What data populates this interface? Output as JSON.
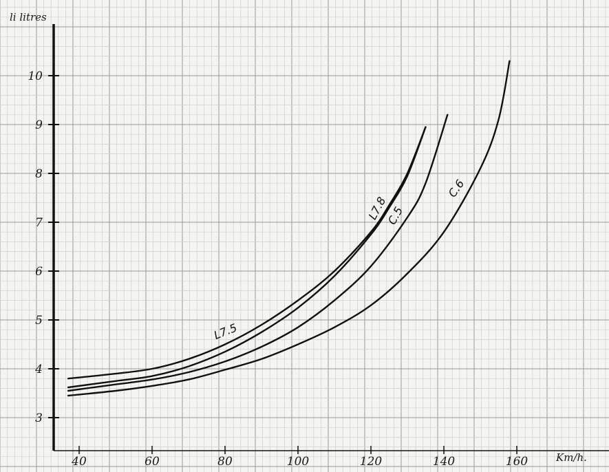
{
  "chart_data": {
    "type": "line",
    "title": "",
    "xlabel": "Km/h.",
    "ylabel": "li litres",
    "xlim": [
      35,
      170
    ],
    "ylim": [
      2.5,
      11
    ],
    "grid": true,
    "xticks": [
      "40",
      "60",
      "80",
      "100",
      "120",
      "140",
      "160"
    ],
    "yticks": [
      "3",
      "4",
      "5",
      "6",
      "7",
      "8",
      "9",
      "10"
    ],
    "series": [
      {
        "name": "L7.5",
        "x": [
          37,
          50,
          60,
          70,
          80,
          90,
          100,
          110,
          120,
          125,
          130,
          135
        ],
        "y": [
          3.8,
          3.9,
          4.0,
          4.2,
          4.5,
          4.9,
          5.4,
          6.0,
          6.8,
          7.35,
          8.0,
          8.95
        ]
      },
      {
        "name": "L7.8",
        "x": [
          37,
          50,
          60,
          70,
          80,
          90,
          100,
          110,
          120,
          125,
          130,
          135
        ],
        "y": [
          3.62,
          3.75,
          3.85,
          4.05,
          4.35,
          4.75,
          5.25,
          5.9,
          6.75,
          7.3,
          7.95,
          8.95
        ]
      },
      {
        "name": "C.5",
        "x": [
          37,
          50,
          60,
          70,
          80,
          90,
          100,
          110,
          120,
          130,
          135,
          141
        ],
        "y": [
          3.55,
          3.68,
          3.78,
          3.93,
          4.15,
          4.45,
          4.85,
          5.4,
          6.1,
          7.1,
          7.8,
          9.2
        ]
      },
      {
        "name": "C.6",
        "x": [
          37,
          50,
          60,
          70,
          80,
          90,
          100,
          110,
          120,
          130,
          140,
          150,
          155,
          158
        ],
        "y": [
          3.45,
          3.55,
          3.65,
          3.78,
          3.98,
          4.2,
          4.5,
          4.85,
          5.3,
          5.95,
          6.8,
          8.1,
          9.1,
          10.3
        ]
      }
    ]
  }
}
